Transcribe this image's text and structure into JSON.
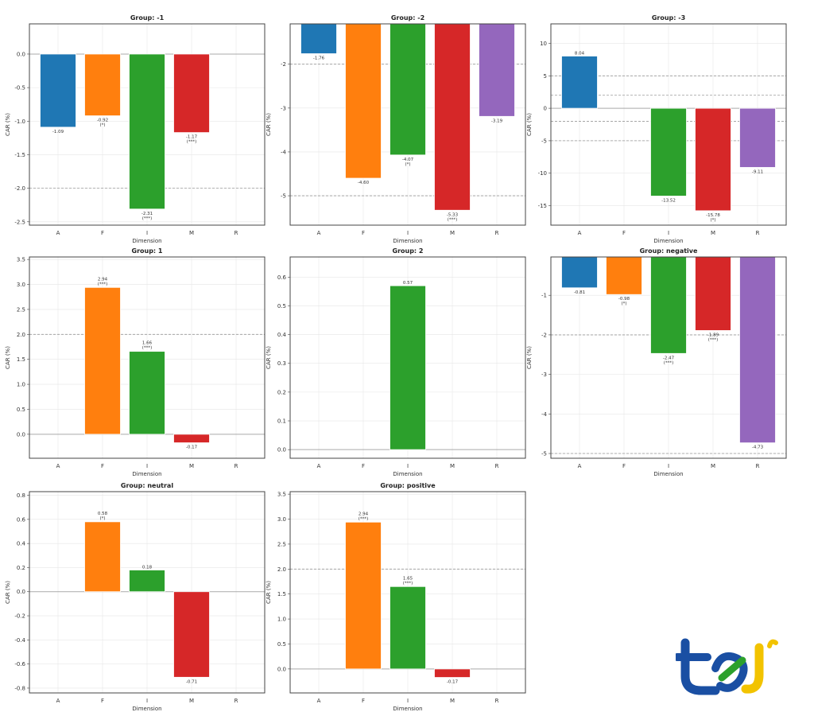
{
  "categories": [
    "A",
    "F",
    "I",
    "M",
    "R"
  ],
  "colors": {
    "A": "#1f77b4",
    "F": "#ff7f0e",
    "I": "#2ca02c",
    "M": "#d62728",
    "R": "#9467bd"
  },
  "logo_text": "tej",
  "chart_data": [
    {
      "type": "bar",
      "title": "Group: -1",
      "xlabel": "Dimension",
      "ylabel": "CAR (%)",
      "ylim": [
        -2.55,
        0.45
      ],
      "yticks": [
        "0.0",
        "-0.5",
        "-1.0",
        "-1.5",
        "-2.0",
        "-2.5"
      ],
      "ytick_values": [
        0,
        -0.5,
        -1,
        -1.5,
        -2,
        -2.5
      ],
      "reference_lines": [
        -2
      ],
      "values": [
        -1.09,
        -0.92,
        -2.31,
        -1.17,
        null
      ],
      "value_labels": [
        "-1.09",
        "-0.92",
        "-2.31",
        "-1.17",
        ""
      ],
      "significance": [
        "",
        "(*)",
        "(***)",
        "(***)",
        ""
      ]
    },
    {
      "type": "bar",
      "title": "Group: -2",
      "xlabel": "Dimension",
      "ylabel": "CAR (%)",
      "ylim": [
        -5.67,
        -1.08
      ],
      "yticks": [
        "-2",
        "-3",
        "-4",
        "-5"
      ],
      "ytick_values": [
        -2,
        -3,
        -4,
        -5
      ],
      "reference_lines": [
        -2,
        -5
      ],
      "values": [
        -1.76,
        -4.6,
        -4.07,
        -5.33,
        -3.19
      ],
      "value_labels": [
        "-1.76",
        "-4.60",
        "-4.07",
        "-5.33",
        "-3.19"
      ],
      "significance": [
        "",
        "",
        "(*)",
        "(***)",
        ""
      ]
    },
    {
      "type": "bar",
      "title": "Group: -3",
      "xlabel": "Dimension",
      "ylabel": "CAR (%)",
      "ylim": [
        -18,
        13
      ],
      "yticks": [
        "10",
        "5",
        "0",
        "-5",
        "-10",
        "-15"
      ],
      "ytick_values": [
        10,
        5,
        0,
        -5,
        -10,
        -15
      ],
      "reference_lines": [
        5,
        2,
        -2,
        -5
      ],
      "values": [
        8.04,
        null,
        -13.52,
        -15.78,
        -9.11
      ],
      "value_labels": [
        "8.04",
        "",
        "-13.52",
        "-15.78",
        "-9.11"
      ],
      "significance": [
        "",
        "",
        "",
        "(*)",
        ""
      ]
    },
    {
      "type": "bar",
      "title": "Group: 1",
      "xlabel": "Dimension",
      "ylabel": "CAR (%)",
      "ylim": [
        -0.48,
        3.55
      ],
      "yticks": [
        "3.5",
        "3.0",
        "2.5",
        "2.0",
        "1.5",
        "1.0",
        "0.5",
        "0.0"
      ],
      "ytick_values": [
        3.5,
        3,
        2.5,
        2,
        1.5,
        1,
        0.5,
        0
      ],
      "reference_lines": [
        2
      ],
      "values": [
        null,
        2.94,
        1.66,
        -0.17,
        null
      ],
      "value_labels": [
        "",
        "2.94",
        "1.66",
        "-0.17",
        ""
      ],
      "significance": [
        "",
        "(***)",
        "(***)",
        "",
        ""
      ]
    },
    {
      "type": "bar",
      "title": "Group: 2",
      "xlabel": "Dimension",
      "ylabel": "CAR (%)",
      "ylim": [
        -0.03,
        0.67
      ],
      "yticks": [
        "0.6",
        "0.5",
        "0.4",
        "0.3",
        "0.2",
        "0.1",
        "0.0"
      ],
      "ytick_values": [
        0.6,
        0.5,
        0.4,
        0.3,
        0.2,
        0.1,
        0
      ],
      "reference_lines": [],
      "values": [
        null,
        null,
        0.57,
        null,
        null
      ],
      "value_labels": [
        "",
        "",
        "0.57",
        "",
        ""
      ],
      "significance": [
        "",
        "",
        "",
        "",
        ""
      ]
    },
    {
      "type": "bar",
      "title": "Group: negative",
      "xlabel": "Dimension",
      "ylabel": "CAR (%)",
      "ylim": [
        -5.12,
        -0.03
      ],
      "yticks": [
        "-1",
        "-2",
        "-3",
        "-4",
        "-5"
      ],
      "ytick_values": [
        -1,
        -2,
        -3,
        -4,
        -5
      ],
      "reference_lines": [
        -2,
        -5
      ],
      "values": [
        -0.81,
        -0.98,
        -2.47,
        -1.89,
        -4.73
      ],
      "value_labels": [
        "-0.81",
        "-0.98",
        "-2.47",
        "-1.89",
        "-4.73"
      ],
      "significance": [
        "",
        "(*)",
        "(***)",
        "(***)",
        ""
      ]
    },
    {
      "type": "bar",
      "title": "Group: neutral",
      "xlabel": "Dimension",
      "ylabel": "CAR (%)",
      "ylim": [
        -0.84,
        0.83
      ],
      "yticks": [
        "0.8",
        "0.6",
        "0.4",
        "0.2",
        "0.0",
        "-0.2",
        "-0.4",
        "-0.6",
        "-0.8"
      ],
      "ytick_values": [
        0.8,
        0.6,
        0.4,
        0.2,
        0,
        -0.2,
        -0.4,
        -0.6,
        -0.8
      ],
      "reference_lines": [],
      "values": [
        null,
        0.58,
        0.18,
        -0.71,
        null
      ],
      "value_labels": [
        "",
        "0.58",
        "0.18",
        "-0.71",
        ""
      ],
      "significance": [
        "",
        "(*)",
        "",
        "",
        ""
      ]
    },
    {
      "type": "bar",
      "title": "Group: positive",
      "xlabel": "Dimension",
      "ylabel": "CAR (%)",
      "ylim": [
        -0.48,
        3.55
      ],
      "yticks": [
        "3.5",
        "3.0",
        "2.5",
        "2.0",
        "1.5",
        "1.0",
        "0.5",
        "0.0"
      ],
      "ytick_values": [
        3.5,
        3,
        2.5,
        2,
        1.5,
        1,
        0.5,
        0
      ],
      "reference_lines": [
        2
      ],
      "values": [
        null,
        2.94,
        1.65,
        -0.17,
        null
      ],
      "value_labels": [
        "",
        "2.94",
        "1.65",
        "-0.17",
        ""
      ],
      "significance": [
        "",
        "(***)",
        "(***)",
        "",
        ""
      ]
    }
  ]
}
